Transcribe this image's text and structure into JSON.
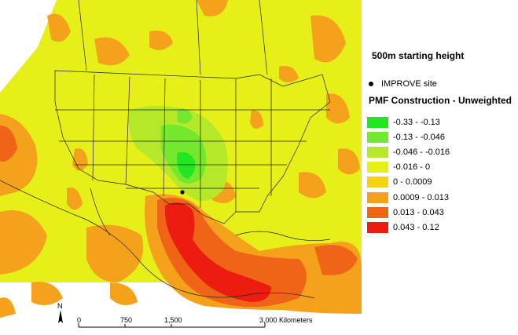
{
  "map": {
    "subtitle": "500m starting height",
    "site_legend_label": "IMPROVE site",
    "legend_title": "PMF Construction - Unweighted",
    "legend": [
      {
        "label": "-0.33 - -0.13",
        "color": "#22e622"
      },
      {
        "label": "-0.13 - -0.046",
        "color": "#74e82c"
      },
      {
        "label": "-0.046 - -0.016",
        "color": "#b4e829"
      },
      {
        "label": "-0.016 - 0",
        "color": "#e6ef18"
      },
      {
        "label": "0 - 0.0009",
        "color": "#f5d210"
      },
      {
        "label": "0.0009 - 0.013",
        "color": "#f4a21c"
      },
      {
        "label": "0.013 - 0.043",
        "color": "#f06418"
      },
      {
        "label": "0.043 - 0.12",
        "color": "#ec1c10"
      }
    ],
    "scale_bar": {
      "ticks": [
        "0",
        "750",
        "1,500",
        "3,000 Kilometers"
      ],
      "north_label": "N"
    }
  }
}
